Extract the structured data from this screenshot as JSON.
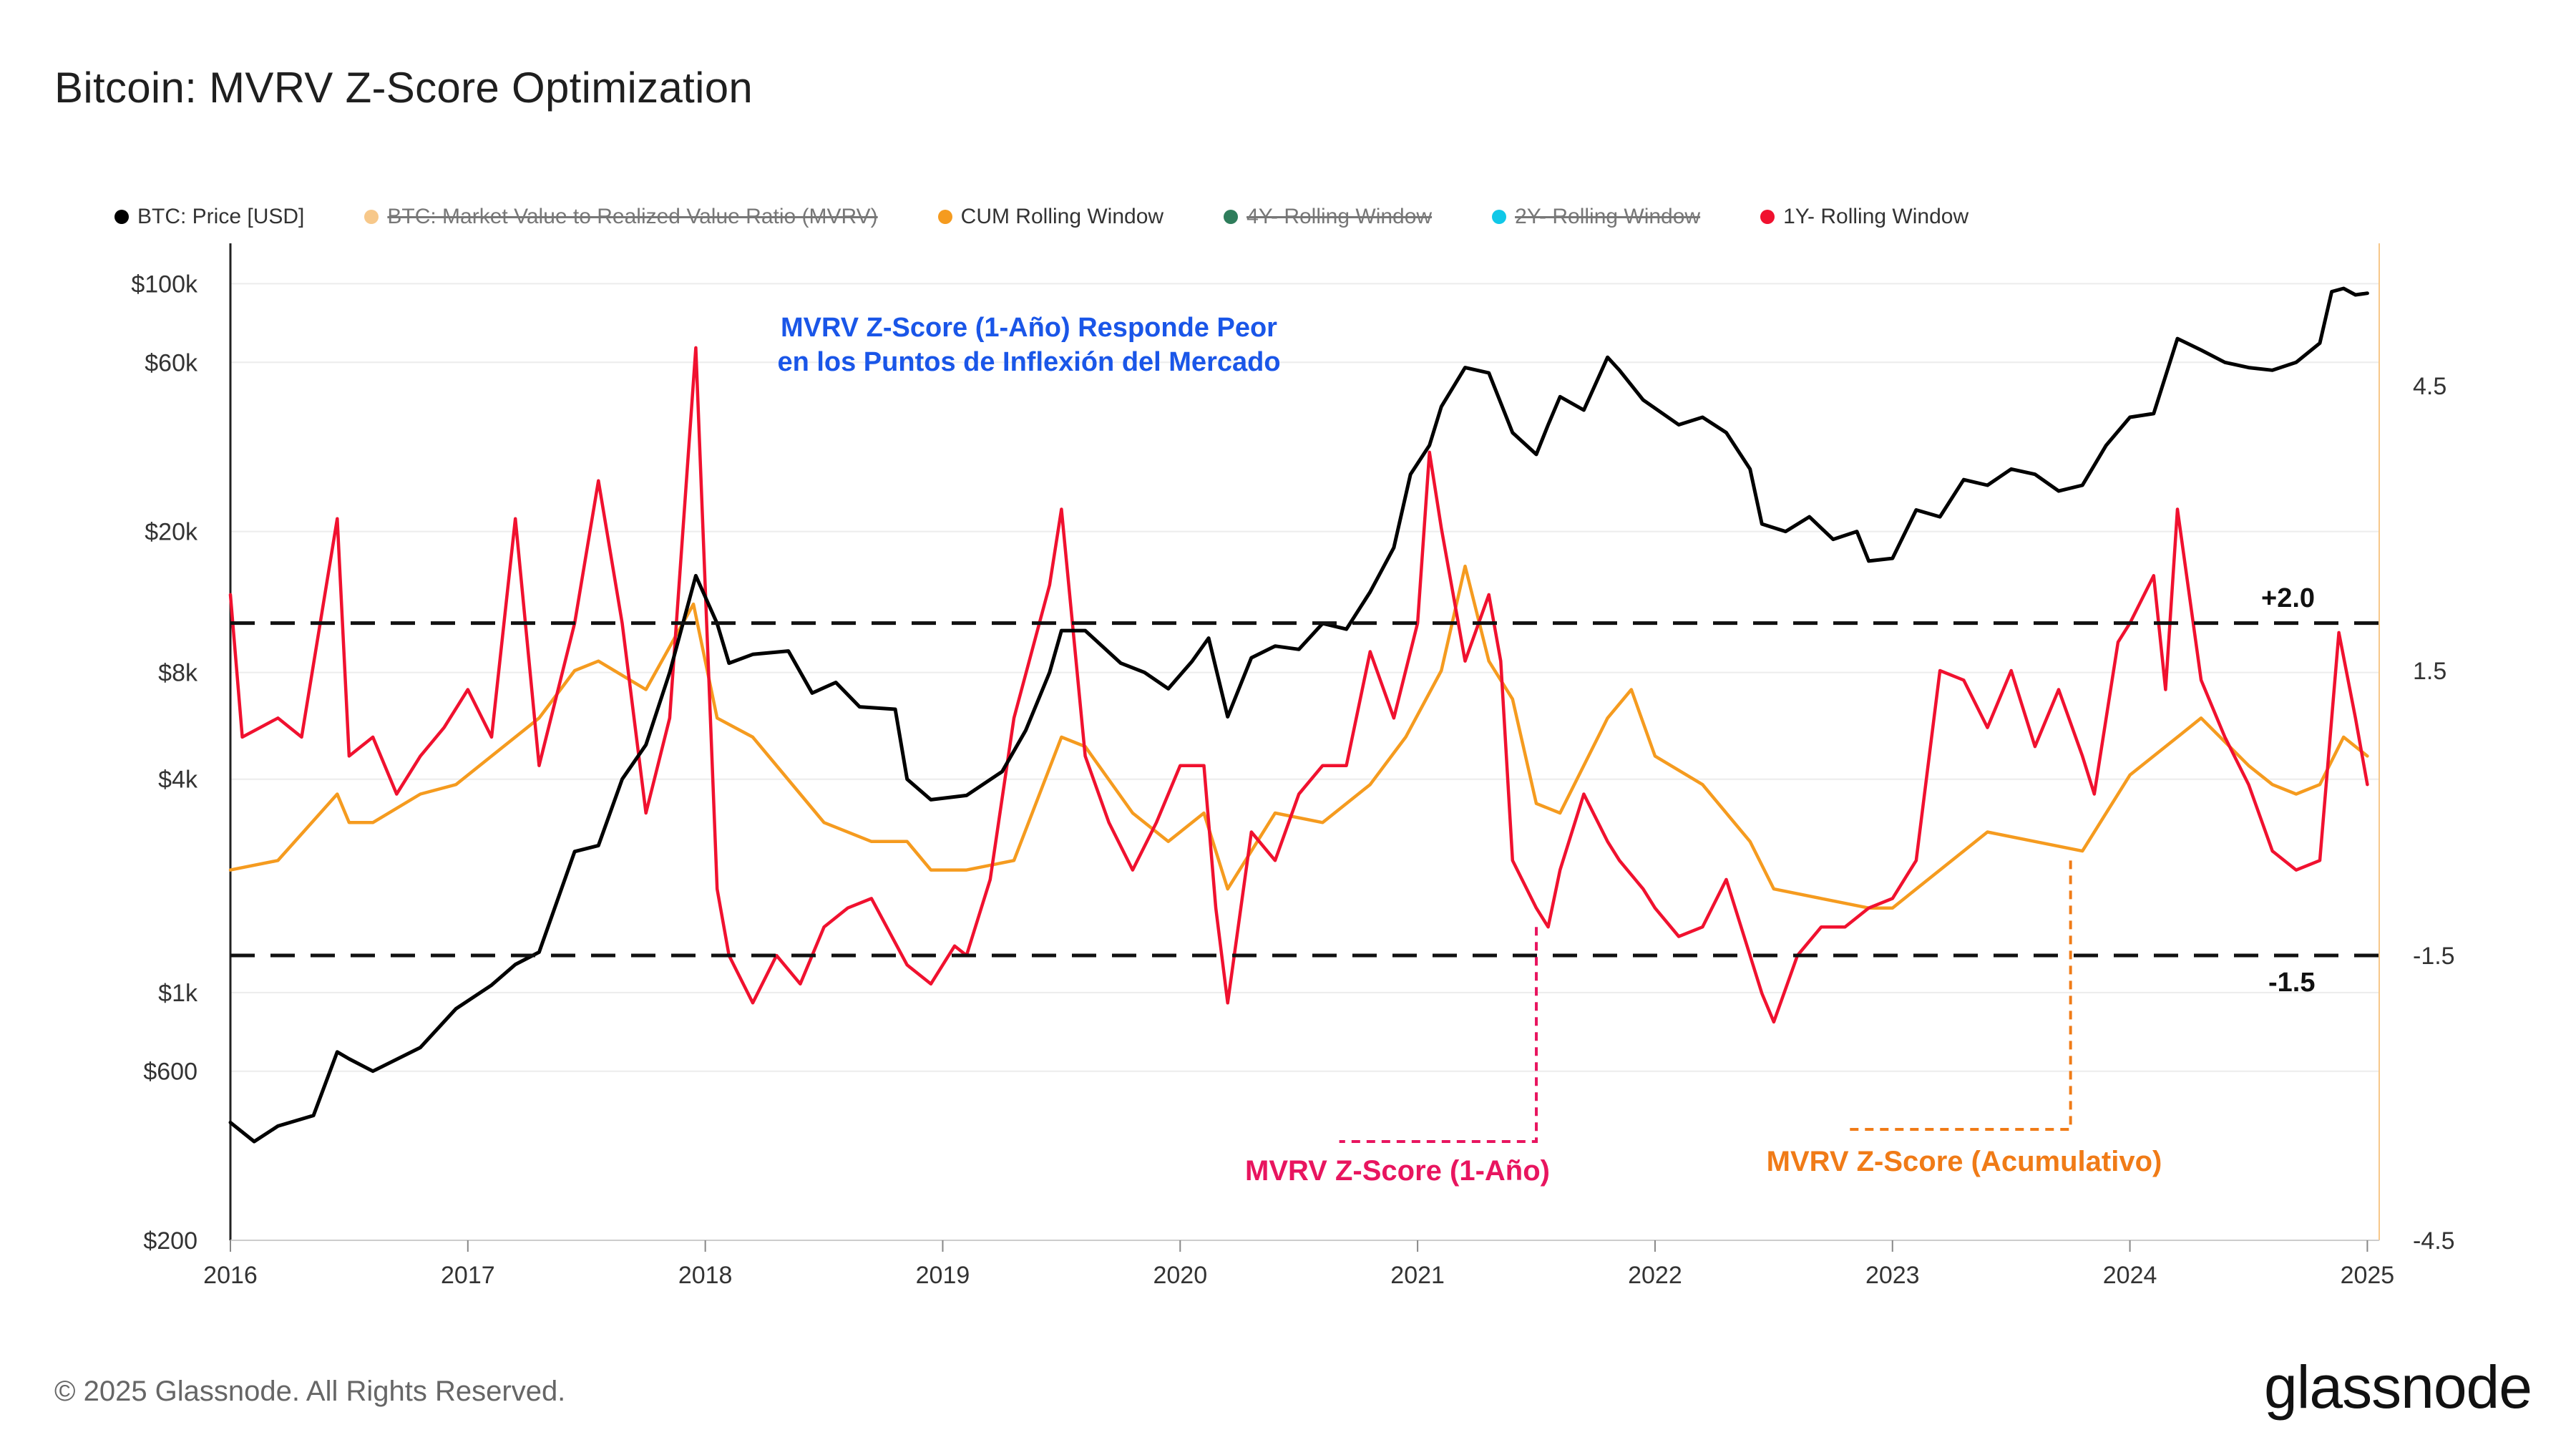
{
  "title": "Bitcoin: MVRV Z-Score Optimization",
  "legend": [
    {
      "label": "BTC: Price [USD]",
      "color": "#000000",
      "enabled": true
    },
    {
      "label": "BTC: Market Value to Realized Value Ratio (MVRV)",
      "color": "#f5a623",
      "enabled": false
    },
    {
      "label": "CUM Rolling Window",
      "color": "#f59b1f",
      "enabled": true
    },
    {
      "label": "4Y- Rolling Window",
      "color": "#2e7d5b",
      "enabled": false
    },
    {
      "label": "2Y- Rolling Window",
      "color": "#10c8e8",
      "enabled": false
    },
    {
      "label": "1Y- Rolling Window",
      "color": "#f0112f",
      "enabled": true
    }
  ],
  "annotations": {
    "headline_line1": "MVRV Z-Score (1-Año) Responde Peor",
    "headline_line2": "en los Puntos de Inflexión del Mercado",
    "headline_color": "#1a56e8",
    "upper_threshold": "+2.0",
    "lower_threshold": "-1.5",
    "one_year_label": "MVRV Z-Score (1-Año)",
    "one_year_color": "#e8155f",
    "cumulative_label": "MVRV Z-Score (Acumulativo)",
    "cumulative_color": "#f07b17"
  },
  "footer": {
    "copyright": "© 2025 Glassnode. All Rights Reserved.",
    "brand": "glassnode"
  },
  "chart_data": {
    "type": "line",
    "x_ticks": [
      "2016",
      "2017",
      "2018",
      "2019",
      "2020",
      "2021",
      "2022",
      "2023",
      "2024",
      "2025"
    ],
    "xlim": [
      2016.0,
      2025.05
    ],
    "y_left": {
      "scale": "log",
      "range": [
        200,
        130000
      ],
      "ticks": [
        "$200",
        "$600",
        "$1k",
        "$4k",
        "$8k",
        "$20k",
        "$60k",
        "$100k"
      ],
      "tick_values": [
        200,
        600,
        1000,
        4000,
        8000,
        20000,
        60000,
        100000
      ]
    },
    "y_right": {
      "scale": "linear",
      "range": [
        -4.5,
        6.0
      ],
      "ticks": [
        "-4.5",
        "-1.5",
        "1.5",
        "4.5"
      ],
      "tick_values": [
        -4.5,
        -1.5,
        1.5,
        4.5
      ]
    },
    "thresholds": [
      2.0,
      -1.5
    ],
    "series": [
      {
        "name": "BTC: Price [USD]",
        "color": "#000000",
        "axis": "left",
        "x": [
          2016.0,
          2016.1,
          2016.2,
          2016.35,
          2016.45,
          2016.5,
          2016.6,
          2016.8,
          2016.95,
          2017.1,
          2017.2,
          2017.3,
          2017.45,
          2017.55,
          2017.65,
          2017.75,
          2017.85,
          2017.96,
          2018.05,
          2018.1,
          2018.2,
          2018.35,
          2018.45,
          2018.55,
          2018.65,
          2018.8,
          2018.85,
          2018.95,
          2019.1,
          2019.25,
          2019.35,
          2019.45,
          2019.5,
          2019.6,
          2019.75,
          2019.85,
          2019.95,
          2020.05,
          2020.12,
          2020.2,
          2020.3,
          2020.4,
          2020.5,
          2020.6,
          2020.7,
          2020.8,
          2020.9,
          2020.97,
          2021.05,
          2021.1,
          2021.2,
          2021.3,
          2021.4,
          2021.5,
          2021.55,
          2021.6,
          2021.7,
          2021.8,
          2021.85,
          2021.95,
          2022.1,
          2022.2,
          2022.3,
          2022.4,
          2022.45,
          2022.55,
          2022.65,
          2022.75,
          2022.85,
          2022.9,
          2023.0,
          2023.1,
          2023.2,
          2023.3,
          2023.4,
          2023.5,
          2023.6,
          2023.7,
          2023.8,
          2023.9,
          2024.0,
          2024.1,
          2024.2,
          2024.3,
          2024.4,
          2024.5,
          2024.6,
          2024.7,
          2024.8,
          2024.85,
          2024.9,
          2024.95,
          2025.0
        ],
        "y": [
          430,
          380,
          420,
          450,
          680,
          650,
          600,
          700,
          900,
          1050,
          1200,
          1300,
          2500,
          2600,
          4000,
          5000,
          8000,
          15000,
          11000,
          8500,
          9000,
          9200,
          7000,
          7500,
          6400,
          6300,
          4000,
          3500,
          3600,
          4200,
          5500,
          8000,
          10500,
          10500,
          8500,
          8000,
          7200,
          8600,
          10000,
          6000,
          8800,
          9500,
          9300,
          11000,
          10600,
          13500,
          18000,
          29000,
          35000,
          45000,
          58000,
          56000,
          38000,
          33000,
          40000,
          48000,
          44000,
          62000,
          57000,
          47000,
          40000,
          42000,
          38000,
          30000,
          21000,
          20000,
          22000,
          19000,
          20000,
          16500,
          16800,
          23000,
          22000,
          28000,
          27000,
          30000,
          29000,
          26000,
          27000,
          35000,
          42000,
          43000,
          70000,
          65000,
          60000,
          58000,
          57000,
          60000,
          68000,
          95000,
          97000,
          93000,
          94000
        ]
      },
      {
        "name": "CUM Rolling Window",
        "color": "#f59b1f",
        "axis": "right",
        "x": [
          2016.0,
          2016.2,
          2016.45,
          2016.5,
          2016.6,
          2016.8,
          2016.95,
          2017.1,
          2017.3,
          2017.45,
          2017.55,
          2017.75,
          2017.95,
          2018.05,
          2018.2,
          2018.4,
          2018.5,
          2018.7,
          2018.85,
          2018.95,
          2019.1,
          2019.3,
          2019.5,
          2019.6,
          2019.8,
          2019.95,
          2020.1,
          2020.2,
          2020.4,
          2020.6,
          2020.8,
          2020.95,
          2021.1,
          2021.2,
          2021.3,
          2021.4,
          2021.5,
          2021.6,
          2021.8,
          2021.9,
          2022.0,
          2022.2,
          2022.4,
          2022.5,
          2022.7,
          2022.9,
          2023.0,
          2023.2,
          2023.4,
          2023.6,
          2023.8,
          2024.0,
          2024.2,
          2024.3,
          2024.5,
          2024.6,
          2024.7,
          2024.8,
          2024.9,
          2025.0
        ],
        "y": [
          -0.6,
          -0.5,
          0.2,
          -0.1,
          -0.1,
          0.2,
          0.3,
          0.6,
          1.0,
          1.5,
          1.6,
          1.3,
          2.2,
          1.0,
          0.8,
          0.2,
          -0.1,
          -0.3,
          -0.3,
          -0.6,
          -0.6,
          -0.5,
          0.8,
          0.7,
          0.0,
          -0.3,
          0.0,
          -0.8,
          0.0,
          -0.1,
          0.3,
          0.8,
          1.5,
          2.6,
          1.6,
          1.2,
          0.1,
          0.0,
          1.0,
          1.3,
          0.6,
          0.3,
          -0.3,
          -0.8,
          -0.9,
          -1.0,
          -1.0,
          -0.6,
          -0.2,
          -0.3,
          -0.4,
          0.4,
          0.8,
          1.0,
          0.5,
          0.3,
          0.2,
          0.3,
          0.8,
          0.6
        ]
      },
      {
        "name": "1Y- Rolling Window",
        "color": "#f0112f",
        "axis": "right",
        "x": [
          2016.0,
          2016.05,
          2016.2,
          2016.3,
          2016.45,
          2016.5,
          2016.6,
          2016.7,
          2016.8,
          2016.9,
          2017.0,
          2017.1,
          2017.2,
          2017.3,
          2017.35,
          2017.45,
          2017.55,
          2017.65,
          2017.75,
          2017.85,
          2017.96,
          2018.05,
          2018.1,
          2018.2,
          2018.3,
          2018.4,
          2018.5,
          2018.6,
          2018.7,
          2018.85,
          2018.95,
          2019.05,
          2019.1,
          2019.2,
          2019.3,
          2019.45,
          2019.5,
          2019.6,
          2019.7,
          2019.8,
          2019.9,
          2020.0,
          2020.1,
          2020.15,
          2020.2,
          2020.3,
          2020.4,
          2020.5,
          2020.6,
          2020.7,
          2020.8,
          2020.9,
          2021.0,
          2021.05,
          2021.1,
          2021.2,
          2021.3,
          2021.35,
          2021.4,
          2021.5,
          2021.55,
          2021.6,
          2021.7,
          2021.8,
          2021.85,
          2021.95,
          2022.0,
          2022.1,
          2022.2,
          2022.3,
          2022.4,
          2022.45,
          2022.5,
          2022.6,
          2022.7,
          2022.8,
          2022.9,
          2023.0,
          2023.1,
          2023.2,
          2023.3,
          2023.4,
          2023.5,
          2023.6,
          2023.7,
          2023.8,
          2023.85,
          2023.95,
          2024.0,
          2024.1,
          2024.15,
          2024.2,
          2024.3,
          2024.4,
          2024.5,
          2024.6,
          2024.7,
          2024.8,
          2024.88,
          2024.95,
          2025.0
        ],
        "y": [
          2.3,
          0.8,
          1.0,
          0.8,
          3.1,
          0.6,
          0.8,
          0.2,
          0.6,
          0.9,
          1.3,
          0.8,
          3.1,
          0.5,
          1.0,
          2.0,
          3.5,
          2.0,
          0.0,
          1.0,
          4.9,
          -0.8,
          -1.5,
          -2.0,
          -1.5,
          -1.8,
          -1.2,
          -1.0,
          -0.9,
          -1.6,
          -1.8,
          -1.4,
          -1.5,
          -0.7,
          1.0,
          2.4,
          3.2,
          0.6,
          -0.1,
          -0.6,
          -0.1,
          0.5,
          0.5,
          -1.0,
          -2.0,
          -0.2,
          -0.5,
          0.2,
          0.5,
          0.5,
          1.7,
          1.0,
          2.0,
          3.8,
          3.0,
          1.6,
          2.3,
          1.6,
          -0.5,
          -1.0,
          -1.2,
          -0.6,
          0.2,
          -0.3,
          -0.5,
          -0.8,
          -1.0,
          -1.3,
          -1.2,
          -0.7,
          -1.5,
          -1.9,
          -2.2,
          -1.5,
          -1.2,
          -1.2,
          -1.0,
          -0.9,
          -0.5,
          1.5,
          1.4,
          0.9,
          1.5,
          0.7,
          1.3,
          0.6,
          0.2,
          1.8,
          2.0,
          2.5,
          1.3,
          3.2,
          1.4,
          0.8,
          0.3,
          -0.4,
          -0.6,
          -0.5,
          1.9,
          1.0,
          0.3
        ]
      }
    ]
  }
}
